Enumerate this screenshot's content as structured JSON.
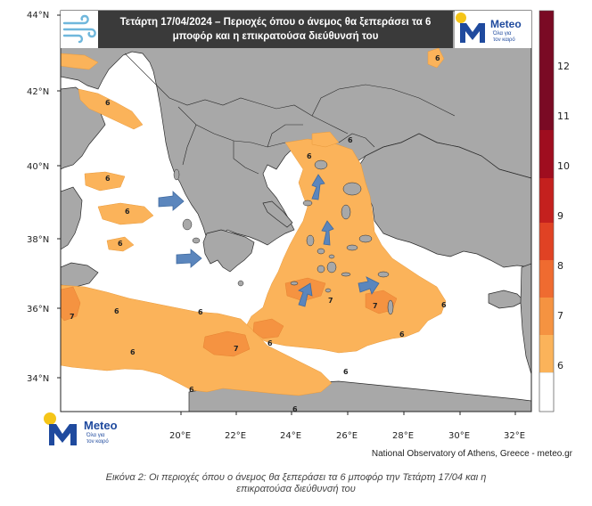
{
  "title": {
    "line1": "Τετάρτη 17/04/2024 – Περιοχές όπου ο άνεμος θα ξεπεράσει τα 6",
    "line2": "μποφόρ και η επικρατούσα διεύθυνσή του"
  },
  "logo": {
    "word": "Meteo",
    "tagline_1": "Όλα για",
    "tagline_2": "τον καιρό"
  },
  "axes": {
    "lat_ticks": [
      "44°N",
      "42°N",
      "40°N",
      "38°N",
      "36°N",
      "34°N"
    ],
    "lon_ticks": [
      "20°E",
      "22°E",
      "24°E",
      "26°E",
      "28°E",
      "30°E",
      "32°E"
    ]
  },
  "colorbar": {
    "levels": [
      "6",
      "7",
      "8",
      "9",
      "10",
      "11",
      "12"
    ],
    "colors": [
      "#ffffff",
      "#fbb35a",
      "#f59341",
      "#ef6b30",
      "#e04224",
      "#c4201e",
      "#9f0d1f",
      "#7a0a24"
    ]
  },
  "colors": {
    "land": "#a8a8a8",
    "sea": "#ffffff",
    "level_6": "#fbb35a",
    "level_7": "#f59341",
    "arrow": "#5b86bd"
  },
  "contour_labels": [
    "6",
    "6",
    "6",
    "6",
    "6",
    "6",
    "6",
    "6",
    "6",
    "6",
    "6",
    "6",
    "6",
    "6",
    "6",
    "6",
    "7",
    "7",
    "7",
    "7"
  ],
  "credit": "National Observatory of Athens, Greece - meteo.gr",
  "caption": {
    "line1": "Εικόνα 2: Οι περιοχές όπου ο άνεμος θα ξεπεράσει τα 6 μποφόρ την Τετάρτη 17/04 και η",
    "line2": "επικρατούσα διεύθυνσή του"
  }
}
